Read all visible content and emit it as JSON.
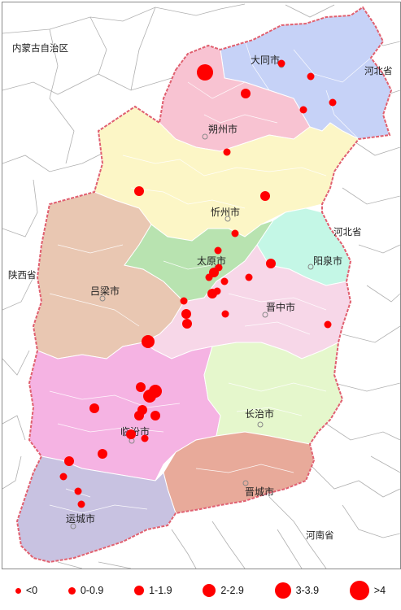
{
  "colors": {
    "datong": "#c6d2f7",
    "shuozhou": "#f8c3d2",
    "xinzhou": "#fcf6c6",
    "lvliang": "#e9c7b2",
    "taiyuan": "#b8e3b0",
    "yangquan": "#c4f7e6",
    "jinzhong": "#f7d7e8",
    "linfen": "#f5b3e3",
    "changzhi": "#e5f7cc",
    "jincheng": "#e8aa9a",
    "yuncheng": "#c8c2e1",
    "border": "#e06070",
    "dot": "#ff0000"
  },
  "labels": {
    "inner_mongolia": "内蒙古自治区",
    "hebei_north": "河北省",
    "hebei_east": "河北省",
    "shaanxi": "陕西省",
    "henan": "河南省",
    "datong": "大同市",
    "shuozhou": "朔州市",
    "xinzhou": "忻州市",
    "taiyuan": "太原市",
    "yangquan": "阳泉市",
    "lvliang": "吕梁市",
    "jinzhong": "晋中市",
    "changzhi": "长治市",
    "linfen": "临汾市",
    "jincheng": "晋城市",
    "yuncheng": "运城市"
  },
  "legend": [
    {
      "label": "<0",
      "class": 0
    },
    {
      "label": "0-0.9",
      "class": 1
    },
    {
      "label": "1-1.9",
      "class": 2
    },
    {
      "label": "2-2.9",
      "class": 3
    },
    {
      "label": "3-3.9",
      "class": 4
    },
    {
      "label": ">4",
      "class": 5
    }
  ]
}
